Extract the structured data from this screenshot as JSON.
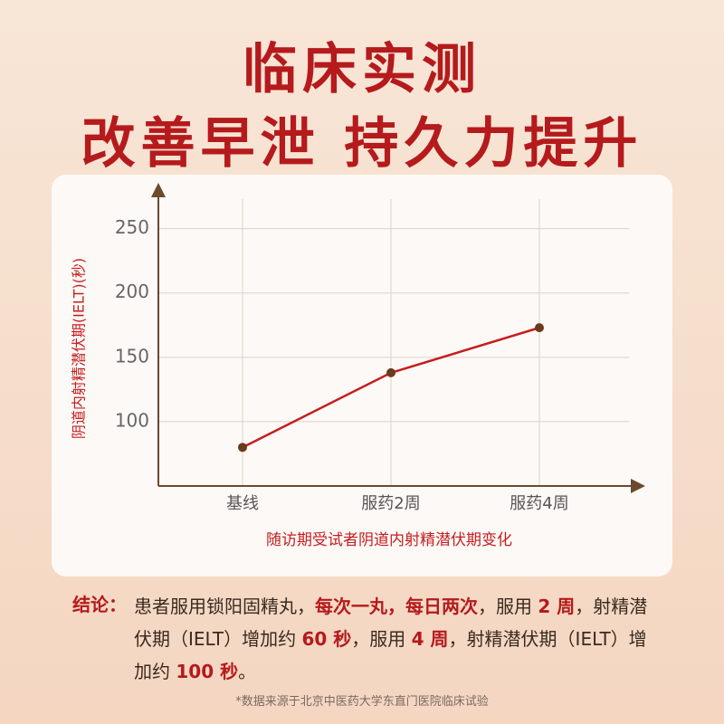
{
  "header": {
    "title_line1": "临床实测",
    "title_line2": "改善早泄 持久力提升"
  },
  "chart_data": {
    "type": "line",
    "y_label": "阴道内射精潜伏期(IELT)(秒)",
    "caption": "随访期受试者阴道内射精潜伏期变化",
    "categories": [
      "基线",
      "服药2周",
      "服药4周"
    ],
    "values": [
      80,
      138,
      173
    ],
    "color": "#c41e1e",
    "marker_color": "#6b3a1e",
    "ylim": [
      50,
      280
    ],
    "yticks": [
      100,
      150,
      200,
      250
    ],
    "grid": true
  },
  "conclusion": {
    "label": "结论：",
    "segments": [
      {
        "text": "患者服用锁阳固精丸，",
        "emphasis": false
      },
      {
        "text": "每次一丸，每日两次",
        "emphasis": true
      },
      {
        "text": "，服用 ",
        "emphasis": false
      },
      {
        "text": "2 周",
        "emphasis": true
      },
      {
        "text": "，射精潜伏期（IELT）增加约 ",
        "emphasis": false
      },
      {
        "text": "60 秒",
        "emphasis": true
      },
      {
        "text": "，服用 ",
        "emphasis": false
      },
      {
        "text": "4 周",
        "emphasis": true
      },
      {
        "text": "，射精潜伏期（IELT）增加约 ",
        "emphasis": false
      },
      {
        "text": "100 秒",
        "emphasis": true
      },
      {
        "text": "。",
        "emphasis": false
      }
    ]
  },
  "footnote": "*数据来源于北京中医药大学东直门医院临床试验"
}
